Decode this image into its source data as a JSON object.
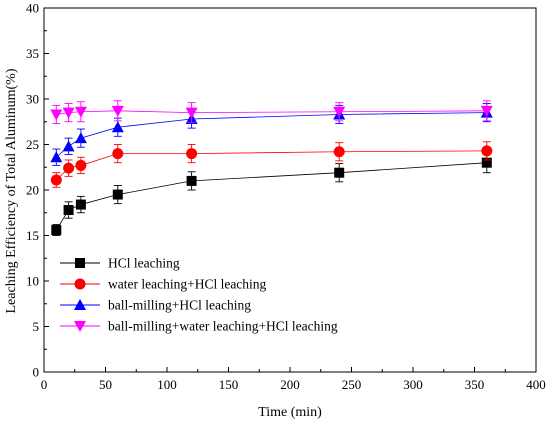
{
  "chart_data": {
    "type": "line",
    "xlabel": "Time (min)",
    "ylabel": "Leaching Efficiency of Total Aluminum(%)",
    "xlim": [
      0,
      400
    ],
    "ylim": [
      0,
      40
    ],
    "x_ticks": [
      "0",
      "50",
      "100",
      "150",
      "200",
      "250",
      "300",
      "350",
      "400"
    ],
    "y_ticks": [
      "0",
      "5",
      "10",
      "15",
      "20",
      "25",
      "30",
      "35",
      "40"
    ],
    "grid": false,
    "legend_position": "lower-left",
    "x": [
      10,
      20,
      30,
      60,
      120,
      240,
      360
    ],
    "series": [
      {
        "name": "HCl leaching",
        "color": "#000000",
        "marker": "square",
        "values": [
          15.6,
          17.8,
          18.4,
          19.5,
          21.0,
          21.9,
          23.0
        ],
        "errors": [
          0.6,
          0.9,
          0.9,
          1.0,
          1.0,
          1.0,
          1.1
        ]
      },
      {
        "name": "water leaching+HCl leaching",
        "color": "#ff0000",
        "marker": "circle",
        "values": [
          21.1,
          22.4,
          22.7,
          24.0,
          24.0,
          24.2,
          24.3
        ],
        "errors": [
          0.8,
          0.9,
          0.9,
          1.0,
          1.0,
          1.0,
          1.0
        ]
      },
      {
        "name": "ball-milling+HCl leaching",
        "color": "#0000ff",
        "marker": "triangle-up",
        "values": [
          23.6,
          24.8,
          25.7,
          26.9,
          27.8,
          28.3,
          28.5
        ],
        "errors": [
          0.9,
          0.9,
          1.0,
          1.0,
          1.0,
          1.0,
          1.0
        ]
      },
      {
        "name": "ball-milling+water leaching+HCl leaching",
        "color": "#ff00ff",
        "marker": "triangle-down",
        "values": [
          28.3,
          28.5,
          28.6,
          28.7,
          28.5,
          28.6,
          28.7
        ],
        "errors": [
          1.0,
          1.0,
          1.1,
          1.1,
          1.1,
          1.0,
          1.1
        ]
      }
    ]
  }
}
